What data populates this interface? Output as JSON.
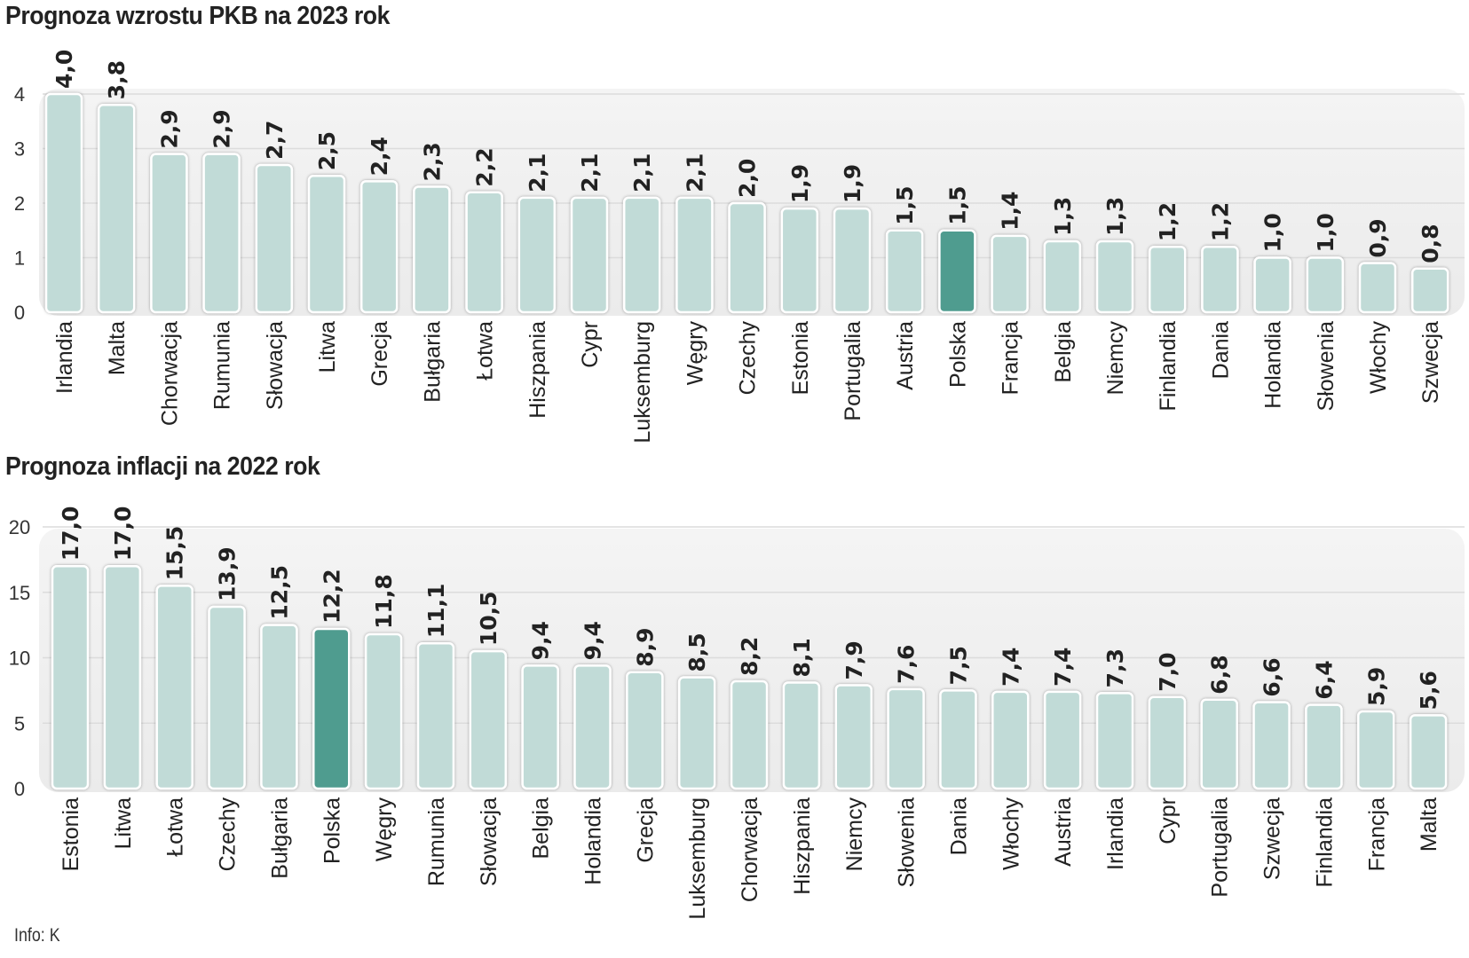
{
  "chart_data": [
    {
      "type": "bar",
      "title": "Prognoza wzrostu PKB na 2023 rok",
      "xlabel": "",
      "ylabel": "",
      "ylim": [
        0,
        4
      ],
      "yticks": [
        0,
        1,
        2,
        3,
        4
      ],
      "grid": true,
      "highlight": "Polska",
      "categories": [
        "Irlandia",
        "Malta",
        "Chorwacja",
        "Rumunia",
        "Słowacja",
        "Litwa",
        "Grecja",
        "Bułgaria",
        "Łotwa",
        "Hiszpania",
        "Cypr",
        "Luksemburg",
        "Węgry",
        "Czechy",
        "Estonia",
        "Portugalia",
        "Austria",
        "Polska",
        "Francja",
        "Belgia",
        "Niemcy",
        "Finlandia",
        "Dania",
        "Holandia",
        "Słowenia",
        "Włochy",
        "Szwecja"
      ],
      "values": [
        4.0,
        3.8,
        2.9,
        2.9,
        2.7,
        2.5,
        2.4,
        2.3,
        2.2,
        2.1,
        2.1,
        2.1,
        2.1,
        2.0,
        1.9,
        1.9,
        1.5,
        1.5,
        1.4,
        1.3,
        1.3,
        1.2,
        1.2,
        1.0,
        1.0,
        0.9,
        0.8
      ],
      "labels": [
        "4,0",
        "3,8",
        "2,9",
        "2,9",
        "2,7",
        "2,5",
        "2,4",
        "2,3",
        "2,2",
        "2,1",
        "2,1",
        "2,1",
        "2,1",
        "2,0",
        "1,9",
        "1,9",
        "1,5",
        "1,5",
        "1,4",
        "1,3",
        "1,3",
        "1,2",
        "1,2",
        "1,0",
        "1,0",
        "0,9",
        "0,8"
      ]
    },
    {
      "type": "bar",
      "title": "Prognoza inflacji na 2022 rok",
      "xlabel": "",
      "ylabel": "",
      "ylim": [
        0,
        20
      ],
      "yticks": [
        0,
        5,
        10,
        15,
        20
      ],
      "grid": true,
      "highlight": "Polska",
      "categories": [
        "Estonia",
        "Litwa",
        "Łotwa",
        "Czechy",
        "Bułgaria",
        "Polska",
        "Węgry",
        "Rumunia",
        "Słowacja",
        "Belgia",
        "Holandia",
        "Grecja",
        "Luksemburg",
        "Chorwacja",
        "Hiszpania",
        "Niemcy",
        "Słowenia",
        "Dania",
        "Włochy",
        "Austria",
        "Irlandia",
        "Cypr",
        "Portugalia",
        "Szwecja",
        "Finlandia",
        "Francja",
        "Malta"
      ],
      "values": [
        17.0,
        17.0,
        15.5,
        13.9,
        12.5,
        12.2,
        11.8,
        11.1,
        10.5,
        9.4,
        9.4,
        8.9,
        8.5,
        8.2,
        8.1,
        7.9,
        7.6,
        7.5,
        7.4,
        7.4,
        7.3,
        7.0,
        6.8,
        6.6,
        6.4,
        5.9,
        5.6
      ],
      "labels": [
        "17,0",
        "17,0",
        "15,5",
        "13,9",
        "12,5",
        "12,2",
        "11,8",
        "11,1",
        "10,5",
        "9,4",
        "9,4",
        "8,9",
        "8,5",
        "8,2",
        "8,1",
        "7,9",
        "7,6",
        "7,5",
        "7,4",
        "7,4",
        "7,3",
        "7,0",
        "6,8",
        "6,6",
        "6,4",
        "5,9",
        "5,6"
      ]
    }
  ],
  "colors": {
    "bar": "#c1dbd7",
    "bar_highlight": "#4f9c8f",
    "panel": "#efefef",
    "text": "#222222"
  },
  "footer": "Info: K"
}
